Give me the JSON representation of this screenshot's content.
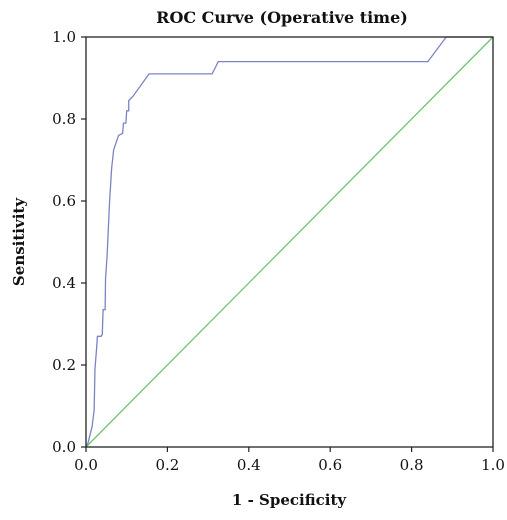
{
  "chart_data": {
    "type": "line",
    "title": "ROC Curve (Operative time)",
    "xlabel": "1 - Specificity",
    "ylabel": "Sensitivity",
    "xlim": [
      0.0,
      1.0
    ],
    "ylim": [
      0.0,
      1.0
    ],
    "x_ticks": [
      "0.0",
      "0.2",
      "0.4",
      "0.6",
      "0.8",
      "1.0"
    ],
    "y_ticks": [
      "0.0",
      "0.2",
      "0.4",
      "0.6",
      "0.8",
      "1.0"
    ],
    "grid": false,
    "series": [
      {
        "color": "#7b83c6",
        "points": [
          [
            0.0,
            0.0
          ],
          [
            0.005,
            0.01
          ],
          [
            0.01,
            0.03
          ],
          [
            0.015,
            0.05
          ],
          [
            0.02,
            0.09
          ],
          [
            0.022,
            0.19
          ],
          [
            0.026,
            0.24
          ],
          [
            0.028,
            0.27
          ],
          [
            0.037,
            0.27
          ],
          [
            0.04,
            0.275
          ],
          [
            0.042,
            0.335
          ],
          [
            0.047,
            0.335
          ],
          [
            0.048,
            0.41
          ],
          [
            0.052,
            0.47
          ],
          [
            0.058,
            0.6
          ],
          [
            0.063,
            0.68
          ],
          [
            0.068,
            0.725
          ],
          [
            0.08,
            0.76
          ],
          [
            0.09,
            0.765
          ],
          [
            0.092,
            0.79
          ],
          [
            0.098,
            0.79
          ],
          [
            0.1,
            0.82
          ],
          [
            0.105,
            0.82
          ],
          [
            0.105,
            0.845
          ],
          [
            0.115,
            0.855
          ],
          [
            0.155,
            0.91
          ],
          [
            0.31,
            0.91
          ],
          [
            0.325,
            0.94
          ],
          [
            0.84,
            0.94
          ],
          [
            0.885,
            1.0
          ],
          [
            1.0,
            1.0
          ]
        ]
      },
      {
        "color": "#6fc473",
        "points": [
          [
            0.0,
            0.0
          ],
          [
            1.0,
            1.0
          ]
        ]
      }
    ]
  }
}
